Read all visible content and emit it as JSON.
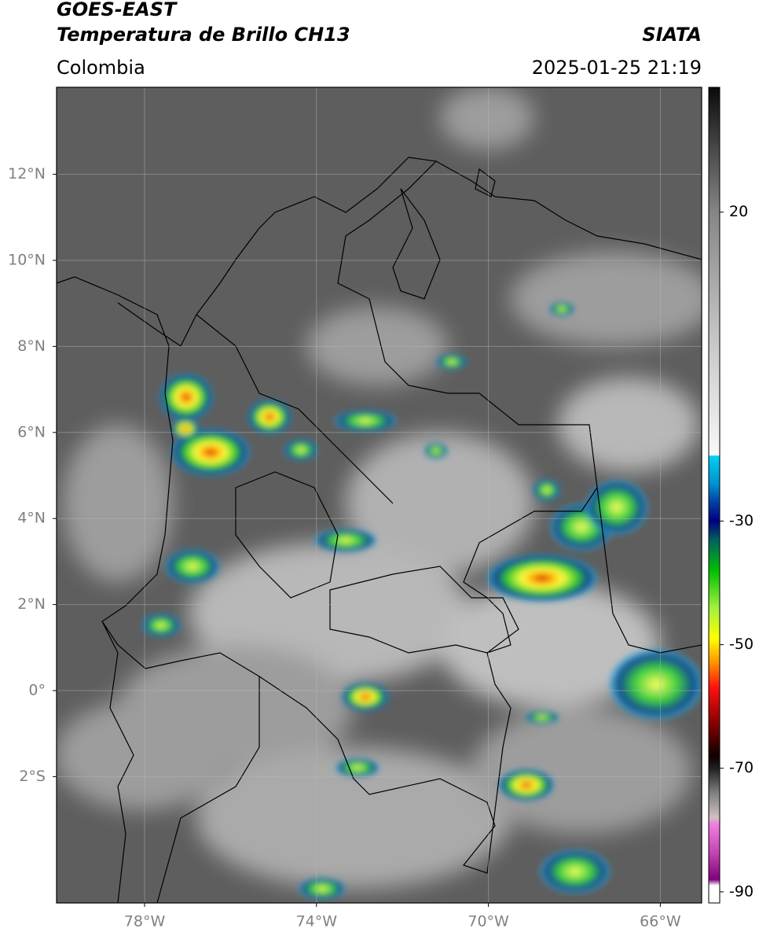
{
  "header": {
    "satellite": "GOES-EAST",
    "product": "Temperatura de Brillo CH13",
    "source": "SIATA",
    "region": "Colombia",
    "datetime": "2025-01-25 21:19"
  },
  "map": {
    "lat_lines": [
      {
        "value": 12,
        "label": "12°N"
      },
      {
        "value": 10,
        "label": "10°N"
      },
      {
        "value": 8,
        "label": "8°N"
      },
      {
        "value": 6,
        "label": "6°N"
      },
      {
        "value": 4,
        "label": "4°N"
      },
      {
        "value": 2,
        "label": "2°N"
      },
      {
        "value": 0,
        "label": "0°"
      },
      {
        "value": -2,
        "label": "2°S"
      }
    ],
    "lon_lines": [
      {
        "value": -78,
        "label": "78°W"
      },
      {
        "value": -74,
        "label": "74°W"
      },
      {
        "value": -70,
        "label": "70°W"
      },
      {
        "value": -66,
        "label": "66°W"
      }
    ],
    "colorbar": {
      "ticks": [
        20,
        -30,
        -50,
        -70,
        -90
      ]
    }
  }
}
